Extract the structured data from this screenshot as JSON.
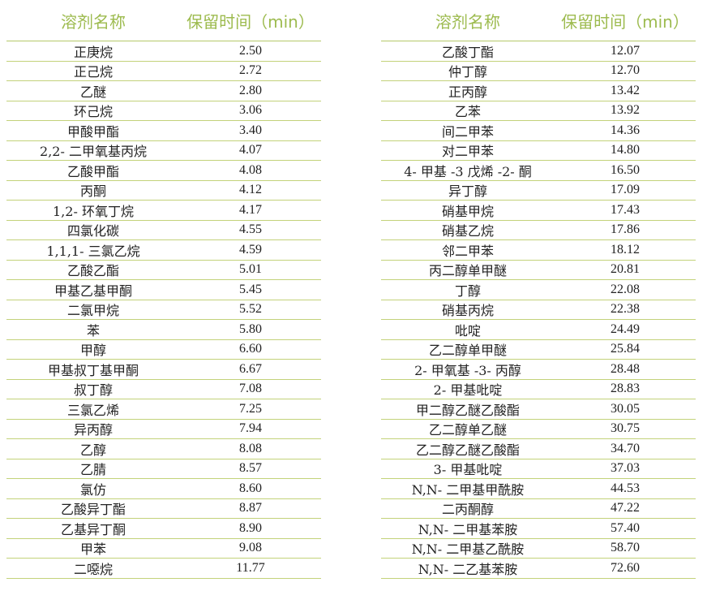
{
  "header": {
    "name": "溶剂名称",
    "time": "保留时间（min）"
  },
  "colors": {
    "header_text": "#9dbb4f",
    "rule": "#b5c96a"
  },
  "left": [
    [
      "正庚烷",
      "2.50"
    ],
    [
      "正己烷",
      "2.72"
    ],
    [
      "乙醚",
      "2.80"
    ],
    [
      "环己烷",
      "3.06"
    ],
    [
      "甲酸甲酯",
      "3.40"
    ],
    [
      "2,2- 二甲氧基丙烷",
      "4.07"
    ],
    [
      "乙酸甲酯",
      "4.08"
    ],
    [
      "丙酮",
      "4.12"
    ],
    [
      "1,2- 环氧丁烷",
      "4.17"
    ],
    [
      "四氯化碳",
      "4.55"
    ],
    [
      "1,1,1- 三氯乙烷",
      "4.59"
    ],
    [
      "乙酸乙酯",
      "5.01"
    ],
    [
      "甲基乙基甲酮",
      "5.45"
    ],
    [
      "二氯甲烷",
      "5.52"
    ],
    [
      "苯",
      "5.80"
    ],
    [
      "甲醇",
      "6.60"
    ],
    [
      "甲基叔丁基甲酮",
      "6.67"
    ],
    [
      "叔丁醇",
      "7.08"
    ],
    [
      "三氯乙烯",
      "7.25"
    ],
    [
      "异丙醇",
      "7.94"
    ],
    [
      "乙醇",
      "8.08"
    ],
    [
      "乙腈",
      "8.57"
    ],
    [
      "氯仿",
      "8.60"
    ],
    [
      "乙酸异丁酯",
      "8.87"
    ],
    [
      "乙基异丁酮",
      "8.90"
    ],
    [
      "甲苯",
      "9.08"
    ],
    [
      "二噁烷",
      "11.77"
    ]
  ],
  "right": [
    [
      "乙酸丁酯",
      "12.07"
    ],
    [
      "仲丁醇",
      "12.70"
    ],
    [
      "正丙醇",
      "13.42"
    ],
    [
      "乙苯",
      "13.92"
    ],
    [
      "间二甲苯",
      "14.36"
    ],
    [
      "对二甲苯",
      "14.80"
    ],
    [
      "4- 甲基 -3 戊烯 -2- 酮",
      "16.50"
    ],
    [
      "异丁醇",
      "17.09"
    ],
    [
      "硝基甲烷",
      "17.43"
    ],
    [
      "硝基乙烷",
      "17.86"
    ],
    [
      "邻二甲苯",
      "18.12"
    ],
    [
      "丙二醇单甲醚",
      "20.81"
    ],
    [
      "丁醇",
      "22.08"
    ],
    [
      "硝基丙烷",
      "22.38"
    ],
    [
      "吡啶",
      "24.49"
    ],
    [
      "乙二醇单甲醚",
      "25.84"
    ],
    [
      "2- 甲氧基 -3- 丙醇",
      "28.48"
    ],
    [
      "2- 甲基吡啶",
      "28.83"
    ],
    [
      "甲二醇乙醚乙酸酯",
      "30.05"
    ],
    [
      "乙二醇单乙醚",
      "30.75"
    ],
    [
      "乙二醇乙醚乙酸酯",
      "34.70"
    ],
    [
      "3- 甲基吡啶",
      "37.03"
    ],
    [
      "N,N- 二甲基甲酰胺",
      "44.53"
    ],
    [
      "二丙酮醇",
      "47.22"
    ],
    [
      "N,N- 二甲基苯胺",
      "57.40"
    ],
    [
      "N,N- 二甲基乙酰胺",
      "58.70"
    ],
    [
      "N,N- 二乙基苯胺",
      "72.60"
    ]
  ]
}
